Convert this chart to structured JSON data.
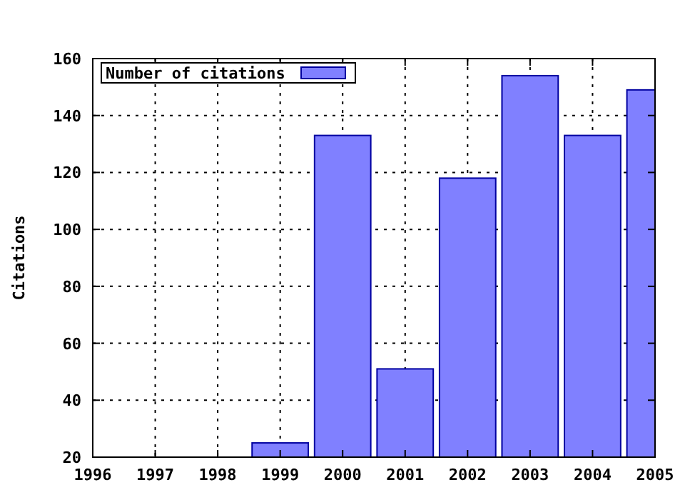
{
  "chart_data": {
    "type": "bar",
    "ylabel": "Citations",
    "x": [
      1999,
      2000,
      2001,
      2002,
      2003,
      2004,
      2005
    ],
    "series": [
      {
        "name": "Number of citations",
        "color": "#8080ff",
        "values": [
          25,
          133,
          51,
          118,
          154,
          133,
          149
        ]
      }
    ],
    "xlim": [
      1996,
      2005
    ],
    "xticks": [
      1996,
      1997,
      1998,
      1999,
      2000,
      2001,
      2002,
      2003,
      2004,
      2005
    ],
    "ylim": [
      20,
      160
    ],
    "yticks": [
      20,
      40,
      60,
      80,
      100,
      120,
      140,
      160
    ],
    "grid": true,
    "legend": "top left"
  }
}
